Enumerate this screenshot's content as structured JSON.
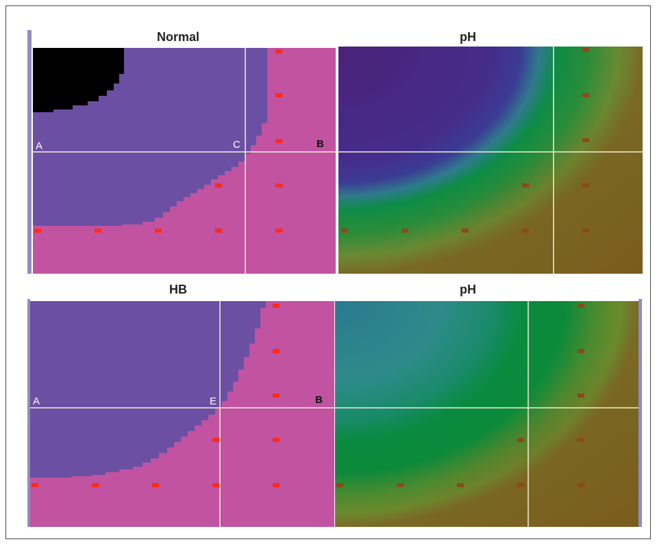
{
  "panels": {
    "normal": {
      "title": "Normal",
      "labels": {
        "a": "A",
        "c": "C",
        "b": "B"
      }
    },
    "ph_top": {
      "title": "pH"
    },
    "hb": {
      "title": "HB",
      "labels": {
        "a": "A",
        "e": "E",
        "b": "B"
      }
    },
    "ph_bottom": {
      "title": "pH"
    }
  },
  "colors": {
    "purple": "#6b4fa3",
    "pink": "#c153a0",
    "black": "#000000",
    "marker": "#ff2a1a",
    "grid_line": "#f5f0d8",
    "ph_dark_purple": "#4a2a80",
    "ph_teal": "#2e8a8a",
    "ph_green": "#0a8a3e",
    "ph_olive": "#6b8a2e",
    "ph_brown": "#7a5a1c"
  }
}
